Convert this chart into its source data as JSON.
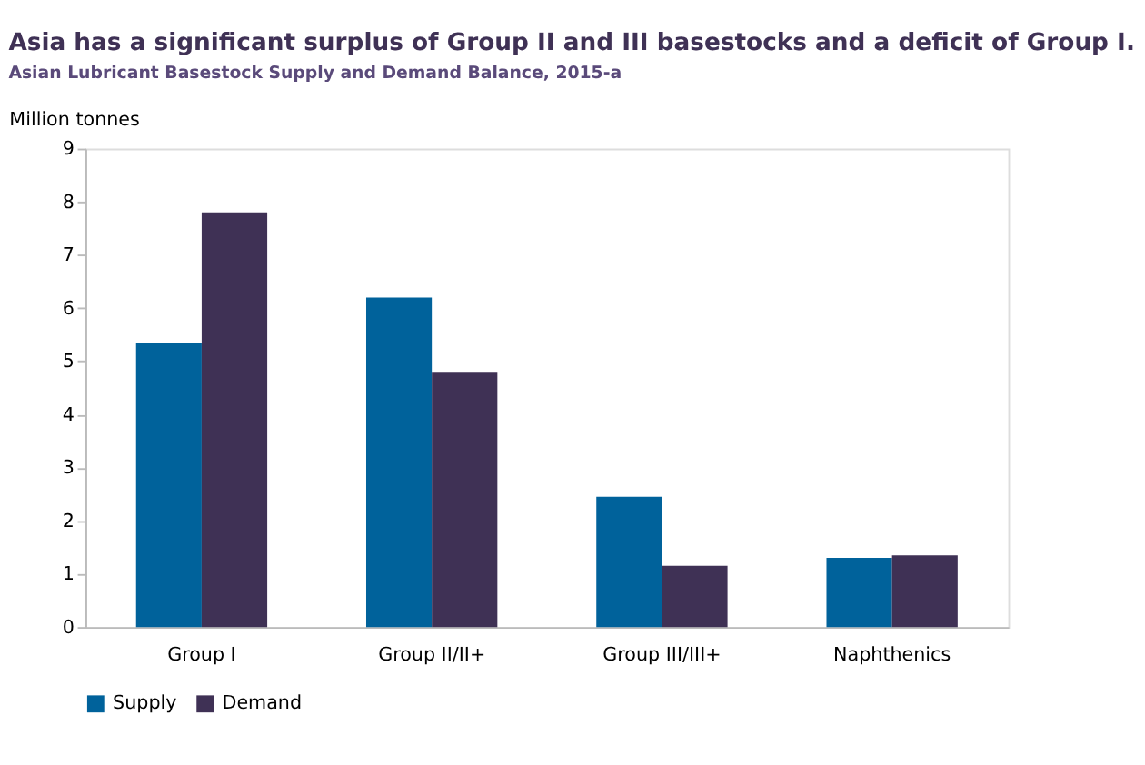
{
  "chart_data": {
    "type": "bar",
    "title": "Asia has a significant surplus of Group II and III basestocks and a deficit of Group I.",
    "subtitle": "Asian Lubricant Basestock Supply and Demand Balance, 2015-a",
    "ylabel": "Million tonnes",
    "categories": [
      "Group I",
      "Group II/II+",
      "Group III/III+",
      "Naphthenics"
    ],
    "series": [
      {
        "name": "Supply",
        "color": "#00629b",
        "values": [
          5.35,
          6.2,
          2.45,
          1.3
        ]
      },
      {
        "name": "Demand",
        "color": "#3f3155",
        "values": [
          7.8,
          4.8,
          1.15,
          1.35
        ]
      }
    ],
    "ylim": [
      0,
      9
    ],
    "yticks": [
      0,
      1,
      2,
      3,
      4,
      5,
      6,
      7,
      8,
      9
    ],
    "grid": false,
    "legend": "bottom"
  }
}
